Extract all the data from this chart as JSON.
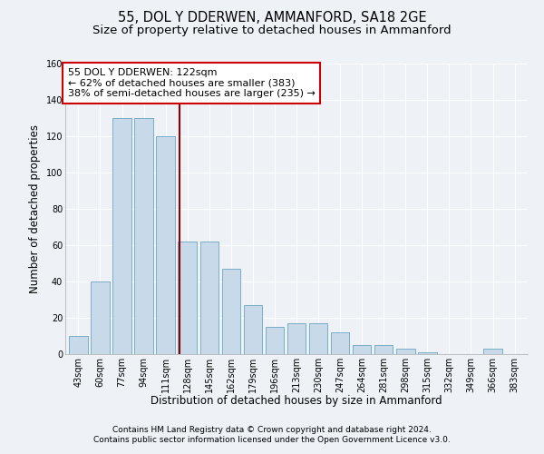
{
  "title1": "55, DOL Y DDERWEN, AMMANFORD, SA18 2GE",
  "title2": "Size of property relative to detached houses in Ammanford",
  "xlabel": "Distribution of detached houses by size in Ammanford",
  "ylabel": "Number of detached properties",
  "categories": [
    "43sqm",
    "60sqm",
    "77sqm",
    "94sqm",
    "111sqm",
    "128sqm",
    "145sqm",
    "162sqm",
    "179sqm",
    "196sqm",
    "213sqm",
    "230sqm",
    "247sqm",
    "264sqm",
    "281sqm",
    "298sqm",
    "315sqm",
    "332sqm",
    "349sqm",
    "366sqm",
    "383sqm"
  ],
  "values": [
    10,
    40,
    130,
    130,
    120,
    62,
    62,
    47,
    27,
    15,
    17,
    17,
    12,
    5,
    5,
    3,
    1,
    0,
    0,
    3,
    0
  ],
  "bar_color": "#c8daea",
  "bar_edge_color": "#7aafc8",
  "annotation_line1": "55 DOL Y DDERWEN: 122sqm",
  "annotation_line2": "← 62% of detached houses are smaller (383)",
  "annotation_line3": "38% of semi-detached houses are larger (235) →",
  "ylim": [
    0,
    160
  ],
  "yticks": [
    0,
    20,
    40,
    60,
    80,
    100,
    120,
    140,
    160
  ],
  "footer1": "Contains HM Land Registry data © Crown copyright and database right 2024.",
  "footer2": "Contains public sector information licensed under the Open Government Licence v3.0.",
  "background_color": "#eef2f7",
  "plot_bg_color": "#eef2f7",
  "grid_color": "#ffffff",
  "title_fontsize": 10.5,
  "subtitle_fontsize": 9.5,
  "axis_label_fontsize": 8.5,
  "tick_fontsize": 7,
  "annotation_fontsize": 8,
  "footer_fontsize": 6.5
}
